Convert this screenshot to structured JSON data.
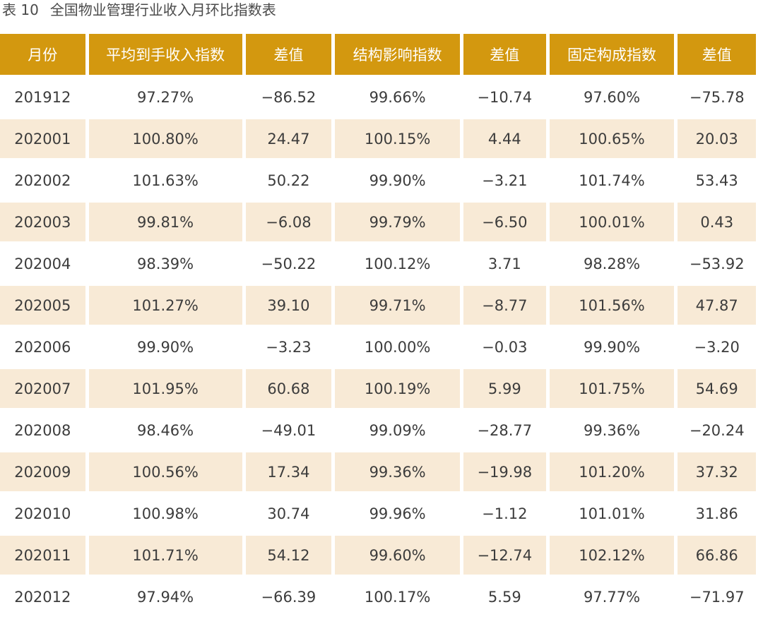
{
  "caption": {
    "label": "表 10",
    "title": "全国物业管理行业收入月环比指数表"
  },
  "colors": {
    "header_bg": "#d3980f",
    "header_text": "#ffffff",
    "row_shade": "#f8ead6"
  },
  "table": {
    "headers": [
      "月份",
      "平均到手收入指数",
      "差值",
      "结构影响指数",
      "差值",
      "固定构成指数",
      "差值"
    ],
    "rows": [
      [
        "201912",
        "97.27%",
        "−86.52",
        "99.66%",
        "−10.74",
        "97.60%",
        "−75.78"
      ],
      [
        "202001",
        "100.80%",
        "24.47",
        "100.15%",
        "4.44",
        "100.65%",
        "20.03"
      ],
      [
        "202002",
        "101.63%",
        "50.22",
        "99.90%",
        "−3.21",
        "101.74%",
        "53.43"
      ],
      [
        "202003",
        "99.81%",
        "−6.08",
        "99.79%",
        "−6.50",
        "100.01%",
        "0.43"
      ],
      [
        "202004",
        "98.39%",
        "−50.22",
        "100.12%",
        "3.71",
        "98.28%",
        "−53.92"
      ],
      [
        "202005",
        "101.27%",
        "39.10",
        "99.71%",
        "−8.77",
        "101.56%",
        "47.87"
      ],
      [
        "202006",
        "99.90%",
        "−3.23",
        "100.00%",
        "−0.03",
        "99.90%",
        "−3.20"
      ],
      [
        "202007",
        "101.95%",
        "60.68",
        "100.19%",
        "5.99",
        "101.75%",
        "54.69"
      ],
      [
        "202008",
        "98.46%",
        "−49.01",
        "99.09%",
        "−28.77",
        "99.36%",
        "−20.24"
      ],
      [
        "202009",
        "100.56%",
        "17.34",
        "99.36%",
        "−19.98",
        "101.20%",
        "37.32"
      ],
      [
        "202010",
        "100.98%",
        "30.74",
        "99.96%",
        "−1.12",
        "101.01%",
        "31.86"
      ],
      [
        "202011",
        "101.71%",
        "54.12",
        "99.60%",
        "−12.74",
        "102.12%",
        "66.86"
      ],
      [
        "202012",
        "97.94%",
        "−66.39",
        "100.17%",
        "5.59",
        "97.77%",
        "−71.97"
      ]
    ]
  }
}
